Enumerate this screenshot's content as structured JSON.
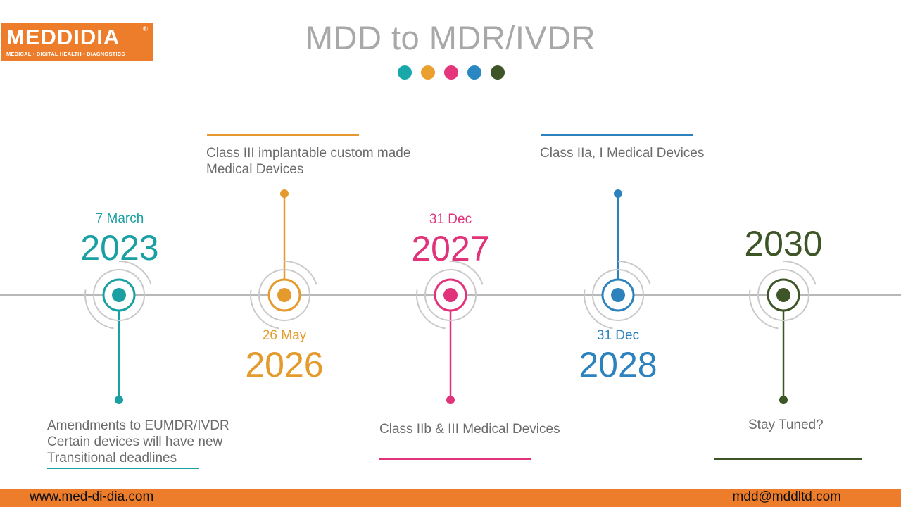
{
  "logo": {
    "name": "MEDDIDIA",
    "registered": "®",
    "tagline": "MEDICAL • DIGITAL HEALTH • DIAGNOSTICS"
  },
  "title": "MDD to MDR/IVDR",
  "accent_dots": [
    "#19a8a9",
    "#e9a02f",
    "#e5357d",
    "#2a87c1",
    "#3d5527"
  ],
  "milestones": [
    {
      "date": "7 March",
      "year": "2023",
      "description": [
        "Amendments to EUMDR/IVDR",
        "Certain devices will have new",
        "Transitional deadlines"
      ],
      "color": "#1a9fa2"
    },
    {
      "date": "26 May",
      "year": "2026",
      "description": [
        "Class III implantable custom made",
        "Medical Devices"
      ],
      "color": "#e49a2d"
    },
    {
      "date": "31 Dec",
      "year": "2027",
      "description": [
        "Class IIb & III Medical Devices"
      ],
      "color": "#e0337a"
    },
    {
      "date": "31 Dec",
      "year": "2028",
      "description": [
        "Class IIa, I Medical Devices"
      ],
      "color": "#2b82bd"
    },
    {
      "date": "",
      "year": "2030",
      "description": [
        "Stay Tuned?"
      ],
      "color": "#3d5527"
    }
  ],
  "footer": {
    "website": "www.med-di-dia.com",
    "email": "mdd@mddltd.com"
  }
}
